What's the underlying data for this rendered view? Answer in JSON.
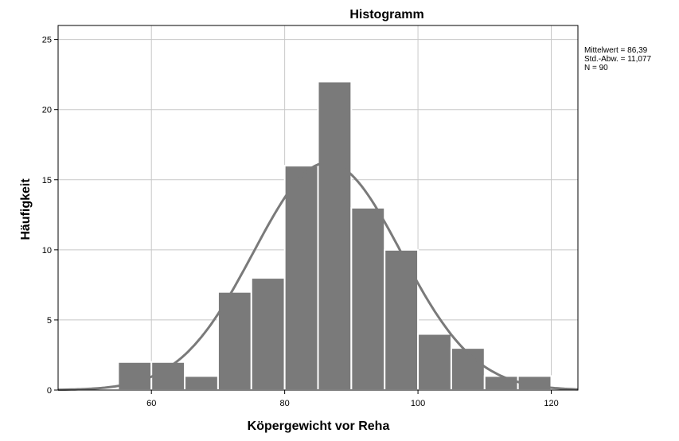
{
  "chart_data": {
    "type": "bar",
    "title": "Histogramm",
    "xlabel": "Köpergewicht vor Reha",
    "ylabel": "Häufigkeit",
    "xlim": [
      46,
      124
    ],
    "ylim": [
      0,
      26
    ],
    "x_ticks": [
      60,
      80,
      100,
      120
    ],
    "y_ticks": [
      0,
      5,
      10,
      15,
      20,
      25
    ],
    "grid": true,
    "bin_width": 5,
    "bins": [
      {
        "start": 55,
        "end": 60,
        "count": 2
      },
      {
        "start": 60,
        "end": 65,
        "count": 2
      },
      {
        "start": 65,
        "end": 70,
        "count": 1
      },
      {
        "start": 70,
        "end": 75,
        "count": 7
      },
      {
        "start": 75,
        "end": 80,
        "count": 8
      },
      {
        "start": 80,
        "end": 85,
        "count": 16
      },
      {
        "start": 85,
        "end": 90,
        "count": 22
      },
      {
        "start": 90,
        "end": 95,
        "count": 13
      },
      {
        "start": 95,
        "end": 100,
        "count": 10
      },
      {
        "start": 100,
        "end": 105,
        "count": 4
      },
      {
        "start": 105,
        "end": 110,
        "count": 3
      },
      {
        "start": 110,
        "end": 115,
        "count": 1
      },
      {
        "start": 115,
        "end": 120,
        "count": 1
      }
    ],
    "normal_curve": {
      "mean": 86.39,
      "sd": 11.077,
      "n": 90
    },
    "stats_labels": [
      "Mittelwert = 86,39",
      "Std.-Abw. = 11,077",
      "N = 90"
    ],
    "colors": {
      "bar": "#7a7a7a",
      "bar_edge": "#ffffff",
      "curve": "#7a7a7a",
      "grid": "#c8c8c8",
      "axis": "#000000"
    }
  }
}
